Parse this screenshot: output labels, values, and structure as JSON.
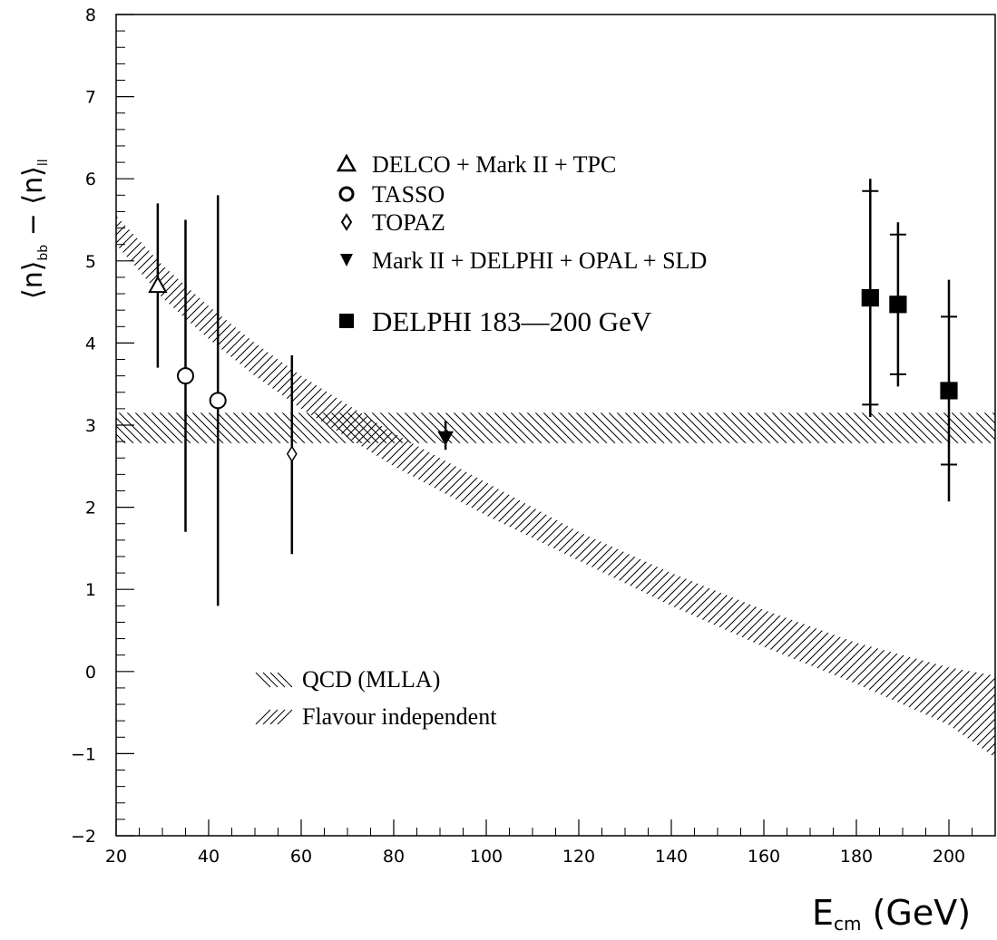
{
  "chart_data": {
    "type": "scatter",
    "title": "",
    "xlabel": "E",
    "xlabel_sub": "cm",
    "xlabel_unit": "(GeV)",
    "ylabel_parts": [
      "⟨n⟩",
      "bb",
      " − ",
      "⟨n⟩",
      "ll"
    ],
    "xlim": [
      20,
      210
    ],
    "ylim": [
      -2,
      8
    ],
    "x_ticks": [
      20,
      40,
      60,
      80,
      100,
      120,
      140,
      160,
      180,
      200
    ],
    "x_tick_labels": [
      "20",
      "40",
      "60",
      "80",
      "100",
      "120",
      "140",
      "160",
      "180",
      "200"
    ],
    "y_ticks": [
      -2,
      -1,
      0,
      1,
      2,
      3,
      4,
      5,
      6,
      7,
      8
    ],
    "y_tick_labels": [
      "−2",
      "−1",
      "0",
      "1",
      "2",
      "3",
      "4",
      "5",
      "6",
      "7",
      "8"
    ],
    "grid": false,
    "series": [
      {
        "name": "DELCO + Mark II + TPC",
        "marker": "triangle-open",
        "points": [
          {
            "x": 29,
            "y": 4.7,
            "err_low": 1.0,
            "err_high": 1.0
          }
        ]
      },
      {
        "name": "TASSO",
        "marker": "circle-open",
        "points": [
          {
            "x": 35,
            "y": 3.6,
            "err_low": 1.9,
            "err_high": 1.9
          },
          {
            "x": 42,
            "y": 3.3,
            "err_low": 2.5,
            "err_high": 2.5
          }
        ]
      },
      {
        "name": "TOPAZ",
        "marker": "diamond-open",
        "points": [
          {
            "x": 58,
            "y": 2.65,
            "err_low": 1.22,
            "err_high": 1.2
          }
        ]
      },
      {
        "name": "Mark II + DELPHI + OPAL + SLD",
        "marker": "triangle-down-filled",
        "points": [
          {
            "x": 91.2,
            "y": 2.85,
            "err_low": 0.15,
            "err_high": 0.2
          }
        ]
      },
      {
        "name": "DELPHI 183—200 GeV",
        "marker": "square-filled",
        "points": [
          {
            "x": 183,
            "y": 4.55,
            "err_low": 1.45,
            "err_high": 1.45,
            "stat_low": 1.3,
            "stat_high": 1.3
          },
          {
            "x": 189,
            "y": 4.47,
            "err_low": 1.0,
            "err_high": 1.0,
            "stat_low": 0.85,
            "stat_high": 0.85
          },
          {
            "x": 200,
            "y": 3.42,
            "err_low": 1.35,
            "err_high": 1.35,
            "stat_low": 0.9,
            "stat_high": 0.9
          }
        ]
      }
    ],
    "bands": [
      {
        "name": "QCD (MLLA)",
        "hatch": "backslash",
        "x": [
          20,
          210
        ],
        "lower": [
          2.78,
          2.78
        ],
        "upper": [
          3.15,
          3.15
        ]
      },
      {
        "name": "Flavour independent",
        "hatch": "slash",
        "x": [
          20,
          30,
          40,
          50,
          60,
          70,
          80,
          90,
          100,
          120,
          140,
          160,
          180,
          200,
          210
        ],
        "lower": [
          5.2,
          4.55,
          4.05,
          3.6,
          3.2,
          2.85,
          2.5,
          2.2,
          1.9,
          1.35,
          0.8,
          0.3,
          -0.15,
          -0.65,
          -1.05
        ],
        "upper": [
          5.55,
          4.95,
          4.45,
          4.0,
          3.6,
          3.25,
          2.9,
          2.6,
          2.3,
          1.7,
          1.2,
          0.75,
          0.35,
          0.05,
          -0.05
        ]
      }
    ],
    "legend_markers": [
      {
        "label": "DELCO + Mark II + TPC",
        "marker": "triangle-open",
        "size": "normal"
      },
      {
        "label": "TASSO",
        "marker": "circle-open",
        "size": "normal"
      },
      {
        "label": "TOPAZ",
        "marker": "diamond-open",
        "size": "normal"
      },
      {
        "label": "Mark II + DELPHI + OPAL + SLD",
        "marker": "triangle-down-filled",
        "size": "normal"
      },
      {
        "label": "DELPHI 183—200 GeV",
        "marker": "square-filled",
        "size": "big"
      }
    ],
    "legend_bands": [
      {
        "label": "QCD (MLLA)",
        "hatch": "backslash"
      },
      {
        "label": "Flavour independent",
        "hatch": "slash"
      }
    ]
  }
}
